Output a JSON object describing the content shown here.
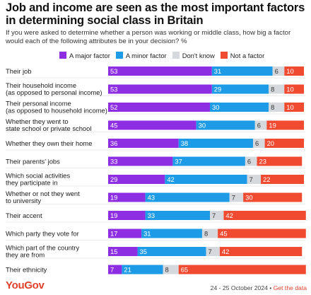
{
  "title": "Job and income are seen as the most important factors in determining social class in Britain",
  "subtitle": "If you were asked to determine whether a person was working or middle class, how big a factor would each of the following attributes be in your decision? %",
  "footer": {
    "logo": "YouGov",
    "date": "24 - 25 October 2024",
    "separator": " • ",
    "link": "Get the data"
  },
  "chart_data": {
    "type": "bar",
    "orientation": "horizontal",
    "stacked": true,
    "xlim": [
      0,
      100
    ],
    "categories": [
      [
        "Their job"
      ],
      [
        "Their household income",
        "(as opposed to personal income)"
      ],
      [
        "Their personal income",
        "(as opposed to household income)"
      ],
      [
        "Whether they went to",
        "state school or private school"
      ],
      [
        "Whether they own their home"
      ],
      [
        "Their parents' jobs"
      ],
      [
        "Which social activities",
        "they participate in"
      ],
      [
        "Whether or not they went",
        "to university"
      ],
      [
        "Their accent"
      ],
      [
        "Which party they vote for"
      ],
      [
        "Which part of the country",
        "they are from"
      ],
      [
        "Their ethnicity"
      ]
    ],
    "series": [
      {
        "name": "A major factor",
        "color": "#8e2ee3",
        "values": [
          53,
          53,
          52,
          45,
          36,
          33,
          29,
          19,
          19,
          17,
          15,
          7
        ]
      },
      {
        "name": "A minor factor",
        "color": "#1e9be6",
        "values": [
          31,
          29,
          30,
          30,
          38,
          37,
          42,
          43,
          33,
          31,
          35,
          21
        ]
      },
      {
        "name": "Don't know",
        "color": "#d5d8dc",
        "values": [
          6,
          8,
          8,
          6,
          6,
          6,
          7,
          7,
          7,
          8,
          7,
          8
        ]
      },
      {
        "name": "Not a factor",
        "color": "#f04a30",
        "values": [
          10,
          10,
          10,
          19,
          20,
          23,
          22,
          30,
          42,
          45,
          42,
          65
        ]
      }
    ]
  }
}
